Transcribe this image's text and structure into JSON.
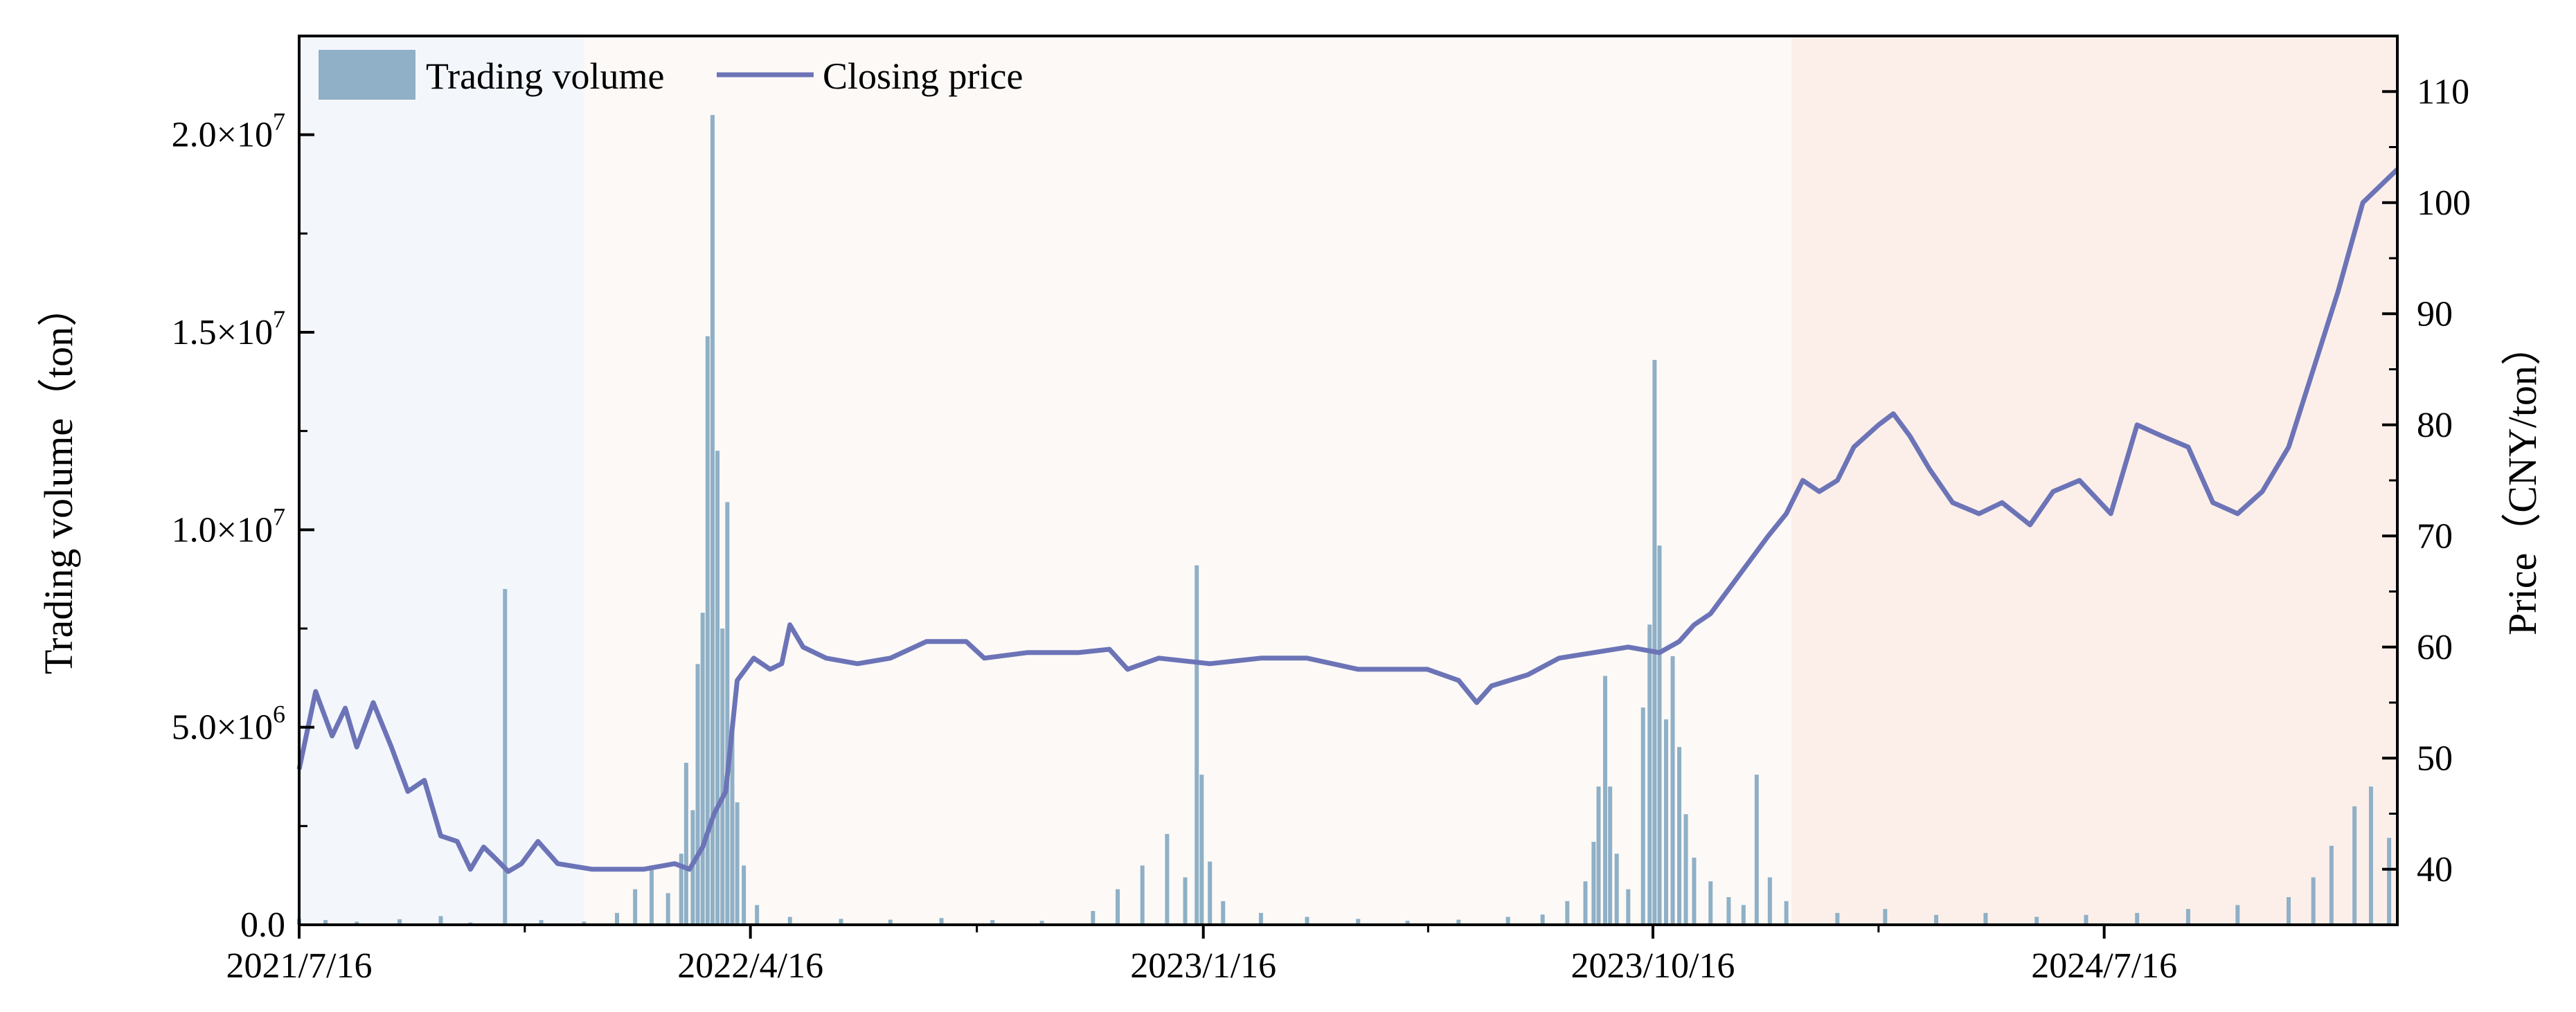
{
  "chart_data": {
    "type": "bar+line",
    "title": "",
    "legend": {
      "placement": "top-left",
      "entries": [
        {
          "name": "Trading volume",
          "kind": "bar",
          "color": "#8fb0c6"
        },
        {
          "name": "Closing price",
          "kind": "line",
          "color": "#6c74b7"
        }
      ]
    },
    "x_axis": {
      "start": "2021/7/16",
      "end": "2025/1/10",
      "tick_labels": [
        "2021/7/16",
        "2022/4/16",
        "2023/1/16",
        "2023/10/16",
        "2024/7/16"
      ]
    },
    "y_left": {
      "label": "Trading volume（ton）",
      "range": [
        0,
        22500000
      ],
      "ticks": [
        {
          "value": 0,
          "label": "0.0"
        },
        {
          "value": 5000000,
          "label": "5.0×10",
          "exp": "6"
        },
        {
          "value": 10000000,
          "label": "1.0×10",
          "exp": "7"
        },
        {
          "value": 15000000,
          "label": "1.5×10",
          "exp": "7"
        },
        {
          "value": 20000000,
          "label": "2.0×10",
          "exp": "7"
        }
      ]
    },
    "y_right": {
      "label": "Price（CNY/ton）",
      "range": [
        35,
        115
      ],
      "ticks": [
        40,
        50,
        60,
        70,
        80,
        90,
        100,
        110
      ]
    },
    "background_periods": [
      {
        "start": "2021/7/16",
        "end": "2022/1/5",
        "color": "#f3f7fc"
      },
      {
        "start": "2022/1/5",
        "end": "2024/1/8",
        "color": "#fcf9f7"
      },
      {
        "start": "2024/1/8",
        "end": "2025/1/10",
        "color": "#fcefea"
      }
    ],
    "price_series": {
      "name": "Closing price",
      "points": [
        [
          "2021/7/16",
          49
        ],
        [
          "2021/7/26",
          56
        ],
        [
          "2021/8/5",
          52
        ],
        [
          "2021/8/13",
          54.5
        ],
        [
          "2021/8/20",
          51
        ],
        [
          "2021/8/30",
          55
        ],
        [
          "2021/9/10",
          51
        ],
        [
          "2021/9/20",
          47
        ],
        [
          "2021/9/30",
          48
        ],
        [
          "2021/10/10",
          43
        ],
        [
          "2021/10/20",
          42.5
        ],
        [
          "2021/10/28",
          40
        ],
        [
          "2021/11/5",
          42
        ],
        [
          "2021/11/12",
          41
        ],
        [
          "2021/11/20",
          39.8
        ],
        [
          "2021/11/28",
          40.5
        ],
        [
          "2021/12/8",
          42.5
        ],
        [
          "2021/12/20",
          40.5
        ],
        [
          "2022/1/10",
          40
        ],
        [
          "2022/2/10",
          40
        ],
        [
          "2022/3/1",
          40.5
        ],
        [
          "2022/3/10",
          40
        ],
        [
          "2022/3/18",
          42
        ],
        [
          "2022/3/25",
          45
        ],
        [
          "2022/4/1",
          47
        ],
        [
          "2022/4/8",
          57
        ],
        [
          "2022/4/18",
          59
        ],
        [
          "2022/4/28",
          58
        ],
        [
          "2022/5/5",
          58.5
        ],
        [
          "2022/5/10",
          62
        ],
        [
          "2022/5/18",
          60
        ],
        [
          "2022/6/1",
          59
        ],
        [
          "2022/6/20",
          58.5
        ],
        [
          "2022/7/10",
          59
        ],
        [
          "2022/8/1",
          60.5
        ],
        [
          "2022/8/25",
          60.5
        ],
        [
          "2022/9/5",
          59
        ],
        [
          "2022/10/1",
          59.5
        ],
        [
          "2022/11/1",
          59.5
        ],
        [
          "2022/11/20",
          59.8
        ],
        [
          "2022/12/1",
          58
        ],
        [
          "2022/12/20",
          59
        ],
        [
          "2023/1/20",
          58.5
        ],
        [
          "2023/2/20",
          59
        ],
        [
          "2023/3/20",
          59
        ],
        [
          "2023/4/20",
          58
        ],
        [
          "2023/5/10",
          58
        ],
        [
          "2023/6/1",
          58
        ],
        [
          "2023/6/20",
          57
        ],
        [
          "2023/7/1",
          55
        ],
        [
          "2023/7/10",
          56.5
        ],
        [
          "2023/8/1",
          57.5
        ],
        [
          "2023/8/20",
          59
        ],
        [
          "2023/9/10",
          59.5
        ],
        [
          "2023/10/1",
          60
        ],
        [
          "2023/10/20",
          59.5
        ],
        [
          "2023/11/1",
          60.5
        ],
        [
          "2023/11/10",
          62
        ],
        [
          "2023/11/20",
          63
        ],
        [
          "2023/12/5",
          66
        ],
        [
          "2023/12/15",
          68
        ],
        [
          "2023/12/25",
          70
        ],
        [
          "2024/1/5",
          72
        ],
        [
          "2024/1/15",
          75
        ],
        [
          "2024/1/25",
          74
        ],
        [
          "2024/2/5",
          75
        ],
        [
          "2024/2/15",
          78
        ],
        [
          "2024/3/1",
          80
        ],
        [
          "2024/3/10",
          81
        ],
        [
          "2024/3/20",
          79
        ],
        [
          "2024/4/1",
          76
        ],
        [
          "2024/4/15",
          73
        ],
        [
          "2024/5/1",
          72
        ],
        [
          "2024/5/15",
          73
        ],
        [
          "2024/6/1",
          71
        ],
        [
          "2024/6/15",
          74
        ],
        [
          "2024/7/1",
          75
        ],
        [
          "2024/7/20",
          72
        ],
        [
          "2024/8/5",
          80
        ],
        [
          "2024/8/20",
          79
        ],
        [
          "2024/9/5",
          78
        ],
        [
          "2024/9/20",
          73
        ],
        [
          "2024/10/5",
          72
        ],
        [
          "2024/10/20",
          74
        ],
        [
          "2024/11/5",
          78
        ],
        [
          "2024/11/20",
          85
        ],
        [
          "2024/12/5",
          92
        ],
        [
          "2024/12/20",
          100
        ],
        [
          "2025/1/10",
          103
        ]
      ]
    },
    "volume_series": {
      "name": "Trading volume",
      "bars": [
        [
          "2021/7/16",
          150000
        ],
        [
          "2021/8/1",
          120000
        ],
        [
          "2021/8/20",
          80000
        ],
        [
          "2021/9/15",
          140000
        ],
        [
          "2021/10/10",
          220000
        ],
        [
          "2021/10/28",
          60000
        ],
        [
          "2021/11/18",
          8500000
        ],
        [
          "2021/12/10",
          120000
        ],
        [
          "2022/1/5",
          80000
        ],
        [
          "2022/1/25",
          300000
        ],
        [
          "2022/2/5",
          900000
        ],
        [
          "2022/2/15",
          1500000
        ],
        [
          "2022/2/25",
          800000
        ],
        [
          "2022/3/5",
          1800000
        ],
        [
          "2022/3/8",
          4100000
        ],
        [
          "2022/3/12",
          2900000
        ],
        [
          "2022/3/15",
          6600000
        ],
        [
          "2022/3/18",
          7900000
        ],
        [
          "2022/3/21",
          14900000
        ],
        [
          "2022/3/24",
          20500000
        ],
        [
          "2022/3/27",
          12000000
        ],
        [
          "2022/3/30",
          7500000
        ],
        [
          "2022/4/2",
          10700000
        ],
        [
          "2022/4/5",
          5100000
        ],
        [
          "2022/4/8",
          3100000
        ],
        [
          "2022/4/12",
          1500000
        ],
        [
          "2022/4/20",
          500000
        ],
        [
          "2022/5/10",
          200000
        ],
        [
          "2022/6/10",
          150000
        ],
        [
          "2022/7/10",
          130000
        ],
        [
          "2022/8/10",
          170000
        ],
        [
          "2022/9/10",
          120000
        ],
        [
          "2022/10/10",
          100000
        ],
        [
          "2022/11/10",
          350000
        ],
        [
          "2022/11/25",
          900000
        ],
        [
          "2022/12/10",
          1500000
        ],
        [
          "2022/12/25",
          2300000
        ],
        [
          "2023/1/5",
          1200000
        ],
        [
          "2023/1/12",
          9100000
        ],
        [
          "2023/1/15",
          3800000
        ],
        [
          "2023/1/20",
          1600000
        ],
        [
          "2023/1/28",
          600000
        ],
        [
          "2023/2/20",
          300000
        ],
        [
          "2023/3/20",
          200000
        ],
        [
          "2023/4/20",
          150000
        ],
        [
          "2023/5/20",
          100000
        ],
        [
          "2023/6/20",
          130000
        ],
        [
          "2023/7/20",
          200000
        ],
        [
          "2023/8/10",
          260000
        ],
        [
          "2023/8/25",
          600000
        ],
        [
          "2023/9/5",
          1100000
        ],
        [
          "2023/9/10",
          2100000
        ],
        [
          "2023/9/13",
          3500000
        ],
        [
          "2023/9/17",
          6300000
        ],
        [
          "2023/9/20",
          3500000
        ],
        [
          "2023/9/24",
          1800000
        ],
        [
          "2023/10/1",
          900000
        ],
        [
          "2023/10/10",
          5500000
        ],
        [
          "2023/10/14",
          7600000
        ],
        [
          "2023/10/17",
          14300000
        ],
        [
          "2023/10/20",
          9600000
        ],
        [
          "2023/10/24",
          5200000
        ],
        [
          "2023/10/28",
          6800000
        ],
        [
          "2023/11/1",
          4500000
        ],
        [
          "2023/11/5",
          2800000
        ],
        [
          "2023/11/10",
          1700000
        ],
        [
          "2023/11/20",
          1100000
        ],
        [
          "2023/12/1",
          700000
        ],
        [
          "2023/12/10",
          500000
        ],
        [
          "2023/12/18",
          3800000
        ],
        [
          "2023/12/26",
          1200000
        ],
        [
          "2024/1/5",
          600000
        ],
        [
          "2024/2/5",
          300000
        ],
        [
          "2024/3/5",
          400000
        ],
        [
          "2024/4/5",
          250000
        ],
        [
          "2024/5/5",
          300000
        ],
        [
          "2024/6/5",
          200000
        ],
        [
          "2024/7/5",
          250000
        ],
        [
          "2024/8/5",
          300000
        ],
        [
          "2024/9/5",
          400000
        ],
        [
          "2024/10/5",
          500000
        ],
        [
          "2024/11/5",
          700000
        ],
        [
          "2024/11/20",
          1200000
        ],
        [
          "2024/12/1",
          2000000
        ],
        [
          "2024/12/15",
          3000000
        ],
        [
          "2024/12/25",
          3500000
        ],
        [
          "2025/1/5",
          2200000
        ]
      ]
    }
  }
}
